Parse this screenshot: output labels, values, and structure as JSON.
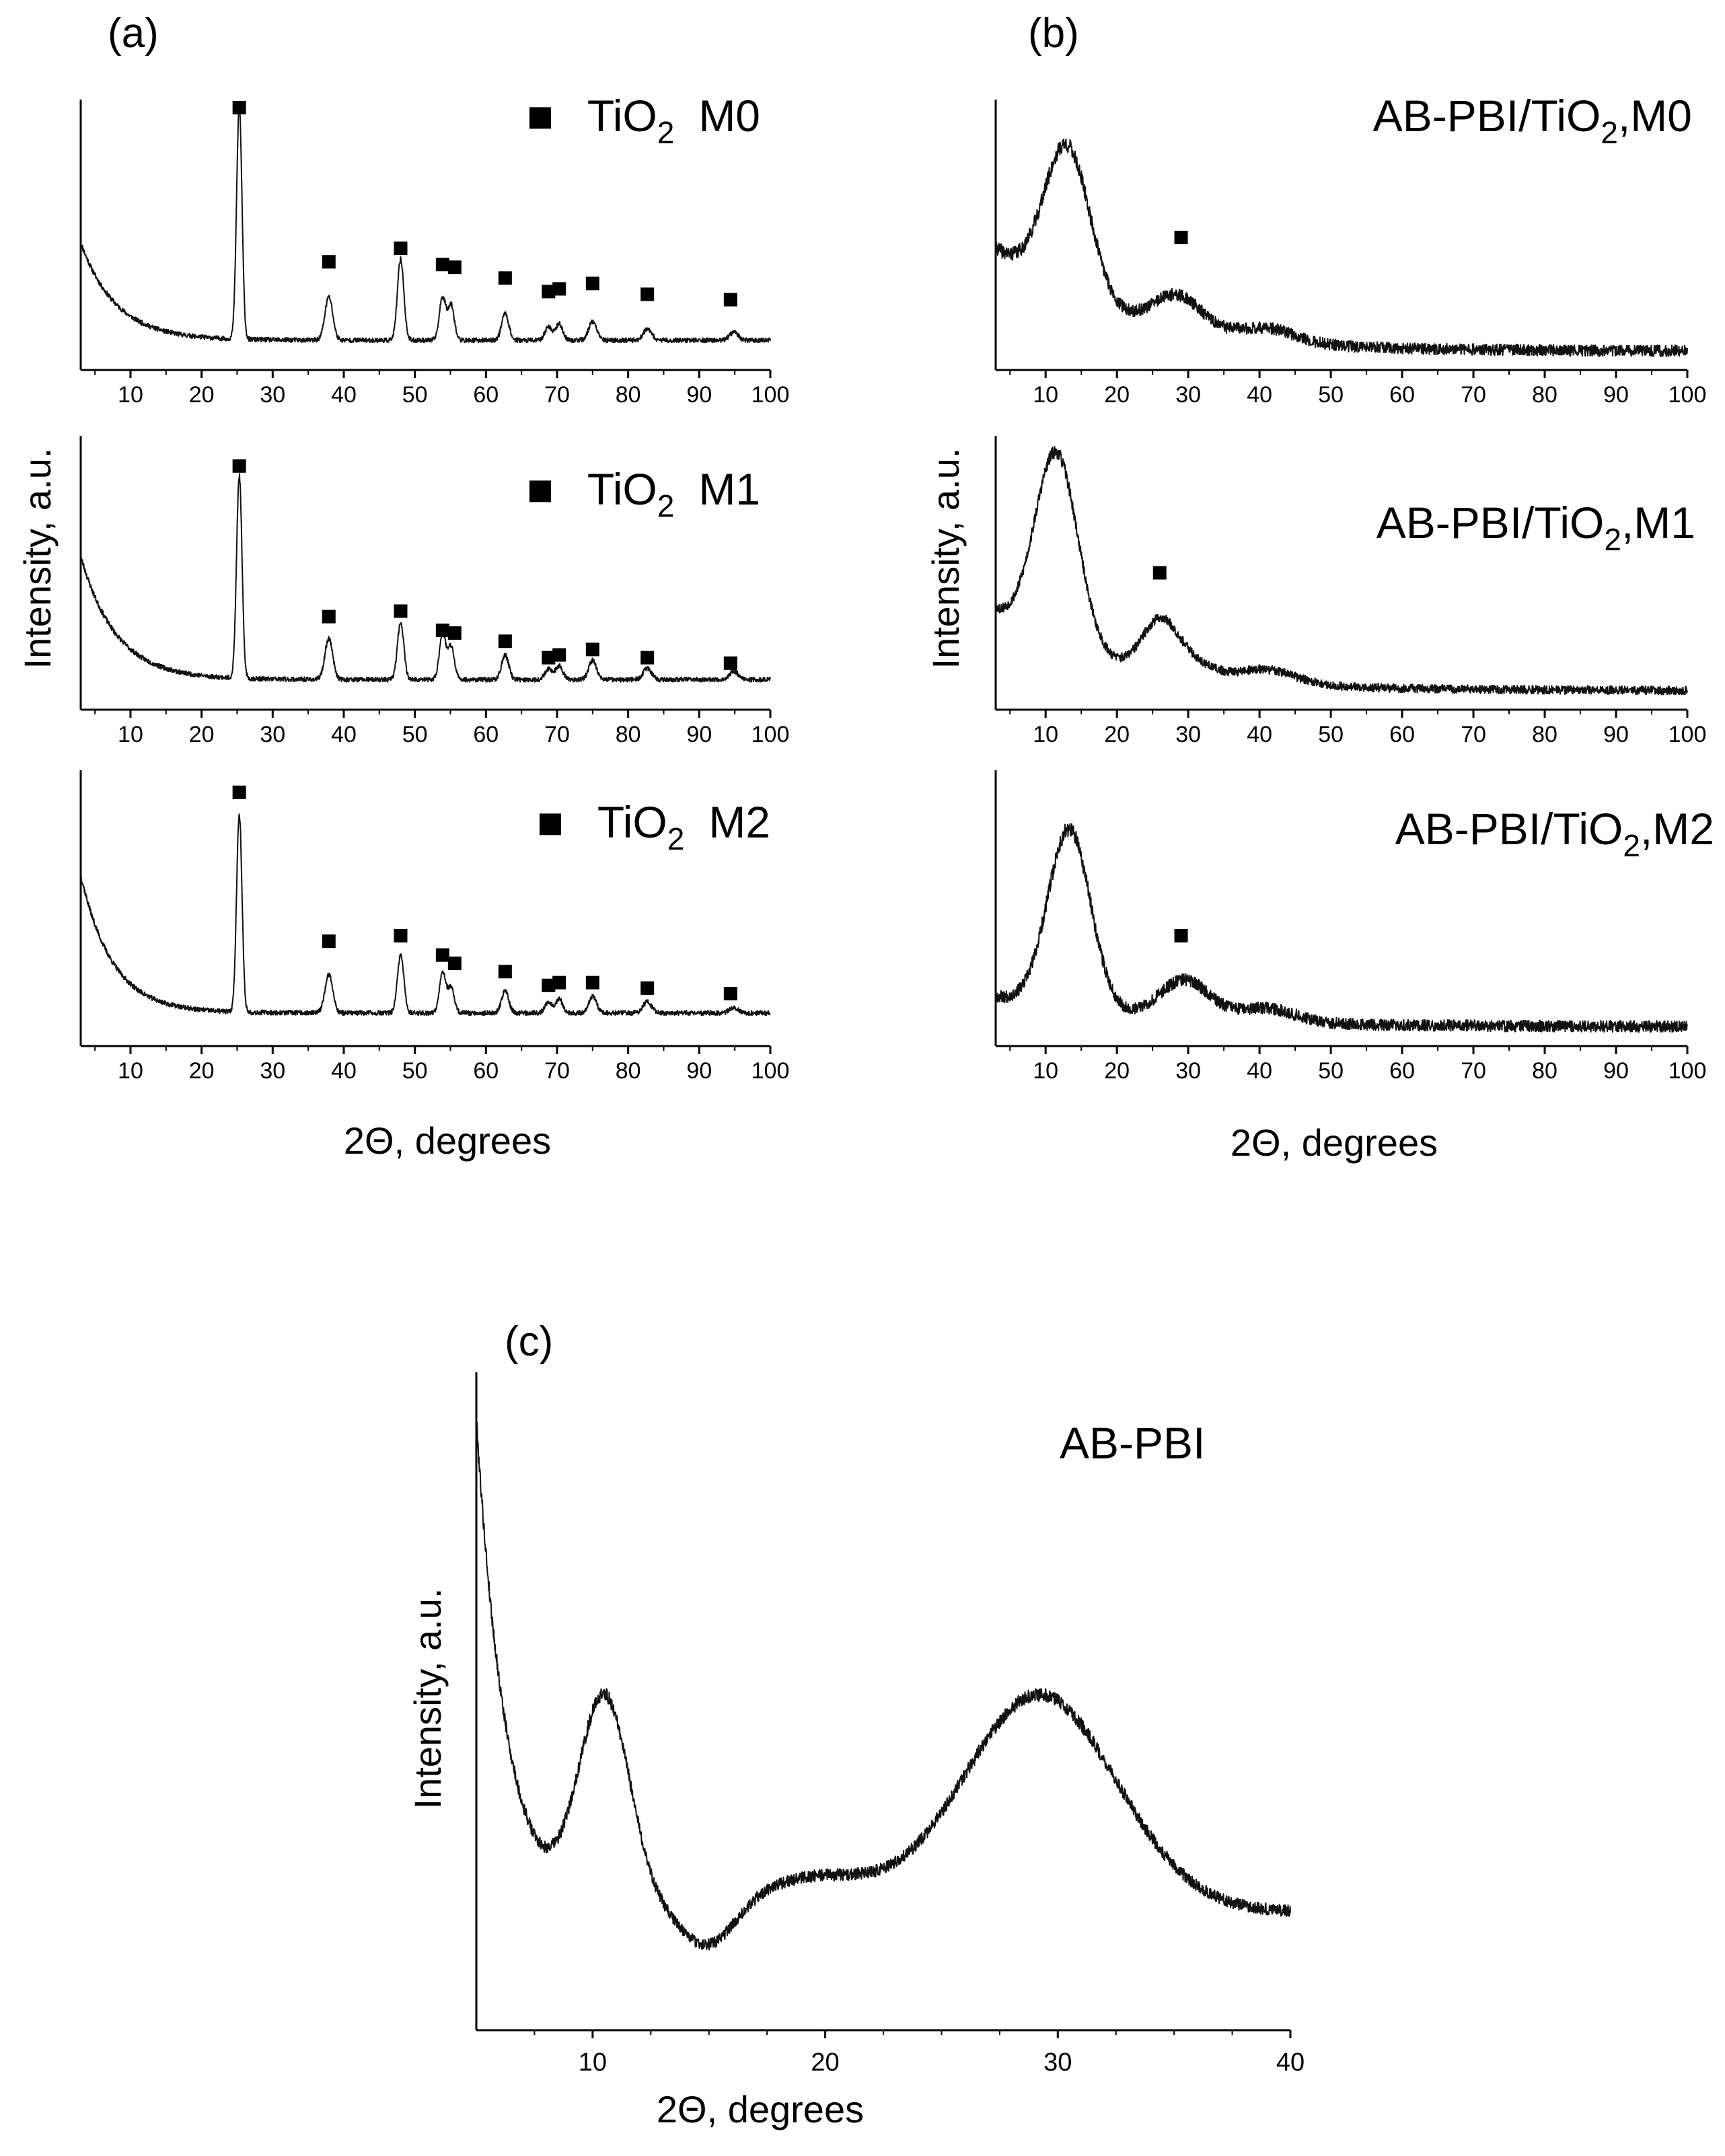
{
  "figure": {
    "panels": [
      {
        "letter": "(a)",
        "xlabel": "2Θ, degrees",
        "ylabel": "Intensity, a.u."
      },
      {
        "letter": "(b)",
        "xlabel": "2Θ, degrees",
        "ylabel": "Intensity, a.u."
      },
      {
        "letter": "(c)",
        "xlabel": "2Θ, degrees",
        "ylabel": "Intensity, a.u."
      }
    ],
    "marker_symbol": "■",
    "line_color": "#111111",
    "marker_color": "#000000"
  },
  "chart_data": [
    {
      "type": "line",
      "panel": "(a)",
      "id": "a0",
      "legend": {
        "marker": "■",
        "main": "TiO",
        "sub": "2",
        "suffix": "M0"
      },
      "xlim": [
        3,
        100
      ],
      "ylim": [
        0,
        1
      ],
      "xticks": [
        10,
        20,
        30,
        40,
        50,
        60,
        70,
        80,
        90,
        100
      ],
      "baseline": {
        "start": 0.47,
        "decay": 5.0,
        "floor": 0.11
      },
      "peaks": [
        [
          25.3,
          0.86,
          0.38
        ],
        [
          37.9,
          0.16,
          0.55
        ],
        [
          48.0,
          0.3,
          0.45
        ],
        [
          53.9,
          0.16,
          0.45
        ],
        [
          55.1,
          0.13,
          0.45
        ],
        [
          62.7,
          0.1,
          0.5
        ],
        [
          68.8,
          0.05,
          0.5
        ],
        [
          70.3,
          0.06,
          0.5
        ],
        [
          75.0,
          0.07,
          0.55
        ],
        [
          82.7,
          0.04,
          0.6
        ],
        [
          94.9,
          0.03,
          0.6
        ]
      ],
      "markers": [
        [
          25.3,
          0.97
        ],
        [
          37.9,
          0.4
        ],
        [
          48.0,
          0.45
        ],
        [
          53.9,
          0.39
        ],
        [
          55.6,
          0.38
        ],
        [
          62.7,
          0.34
        ],
        [
          68.8,
          0.29
        ],
        [
          70.3,
          0.3
        ],
        [
          75.0,
          0.32
        ],
        [
          82.7,
          0.28
        ],
        [
          94.4,
          0.26
        ]
      ],
      "noise": 0.008,
      "seed": 11
    },
    {
      "type": "line",
      "panel": "(a)",
      "id": "a1",
      "legend": {
        "marker": "■",
        "main": "TiO",
        "sub": "2",
        "suffix": "M1"
      },
      "xlim": [
        3,
        100
      ],
      "ylim": [
        0,
        1
      ],
      "xticks": [
        10,
        20,
        30,
        40,
        50,
        60,
        70,
        80,
        90,
        100
      ],
      "baseline": {
        "start": 0.56,
        "decay": 5.0,
        "floor": 0.11
      },
      "peaks": [
        [
          25.3,
          0.74,
          0.38
        ],
        [
          37.9,
          0.15,
          0.55
        ],
        [
          48.0,
          0.21,
          0.45
        ],
        [
          53.9,
          0.17,
          0.45
        ],
        [
          55.1,
          0.12,
          0.45
        ],
        [
          62.7,
          0.09,
          0.5
        ],
        [
          68.8,
          0.04,
          0.5
        ],
        [
          70.3,
          0.05,
          0.5
        ],
        [
          75.0,
          0.07,
          0.55
        ],
        [
          82.7,
          0.04,
          0.6
        ],
        [
          94.9,
          0.03,
          0.6
        ]
      ],
      "markers": [
        [
          25.3,
          0.89
        ],
        [
          37.9,
          0.34
        ],
        [
          48.0,
          0.36
        ],
        [
          53.9,
          0.29
        ],
        [
          55.6,
          0.28
        ],
        [
          62.7,
          0.25
        ],
        [
          68.8,
          0.19
        ],
        [
          70.3,
          0.2
        ],
        [
          75.0,
          0.22
        ],
        [
          82.7,
          0.19
        ],
        [
          94.4,
          0.17
        ]
      ],
      "noise": 0.008,
      "seed": 23
    },
    {
      "type": "line",
      "panel": "(a)",
      "id": "a2",
      "legend": {
        "marker": "■",
        "main": "TiO",
        "sub": "2",
        "suffix": "M2"
      },
      "xlim": [
        3,
        100
      ],
      "ylim": [
        0,
        1
      ],
      "xticks": [
        10,
        20,
        30,
        40,
        50,
        60,
        70,
        80,
        90,
        100
      ],
      "baseline": {
        "start": 0.62,
        "decay": 4.5,
        "floor": 0.12
      },
      "peaks": [
        [
          25.3,
          0.72,
          0.38
        ],
        [
          37.9,
          0.14,
          0.55
        ],
        [
          48.0,
          0.21,
          0.45
        ],
        [
          53.9,
          0.15,
          0.45
        ],
        [
          55.1,
          0.09,
          0.45
        ],
        [
          62.7,
          0.08,
          0.5
        ],
        [
          68.8,
          0.04,
          0.5
        ],
        [
          70.3,
          0.05,
          0.5
        ],
        [
          75.0,
          0.06,
          0.55
        ],
        [
          82.7,
          0.04,
          0.6
        ],
        [
          94.9,
          0.02,
          0.6
        ]
      ],
      "markers": [
        [
          25.3,
          0.92
        ],
        [
          37.9,
          0.38
        ],
        [
          48.0,
          0.4
        ],
        [
          53.9,
          0.33
        ],
        [
          55.6,
          0.3
        ],
        [
          62.7,
          0.27
        ],
        [
          68.8,
          0.22
        ],
        [
          70.3,
          0.23
        ],
        [
          75.0,
          0.23
        ],
        [
          82.7,
          0.21
        ],
        [
          94.4,
          0.19
        ]
      ],
      "noise": 0.008,
      "seed": 37
    },
    {
      "type": "line",
      "panel": "(b)",
      "id": "b0",
      "legend": {
        "marker": "",
        "main": "AB-PBI/TiO",
        "sub": "2",
        "suffix": ",M0"
      },
      "xlim": [
        3,
        100
      ],
      "ylim": [
        0,
        1
      ],
      "xticks": [
        10,
        20,
        30,
        40,
        50,
        60,
        70,
        80,
        90,
        100
      ],
      "baseline": {
        "start": 0.45,
        "decay": 16.0,
        "floor": 0.07
      },
      "peaks": [
        [
          13.0,
          0.56,
          3.2
        ],
        [
          28.5,
          0.13,
          3.5
        ],
        [
          41.0,
          0.05,
          4.0
        ]
      ],
      "markers": [
        [
          29.0,
          0.49
        ]
      ],
      "noise": 0.02,
      "seed": 41
    },
    {
      "type": "line",
      "panel": "(b)",
      "id": "b1",
      "legend": {
        "marker": "",
        "main": "AB-PBI/TiO",
        "sub": "2",
        "suffix": ",M1"
      },
      "xlim": [
        3,
        100
      ],
      "ylim": [
        0,
        1
      ],
      "xticks": [
        10,
        20,
        30,
        40,
        50,
        60,
        70,
        80,
        90,
        100
      ],
      "baseline": {
        "start": 0.36,
        "decay": 16.0,
        "floor": 0.07
      },
      "peaks": [
        [
          11.5,
          0.7,
          3.0
        ],
        [
          26.0,
          0.18,
          2.5
        ],
        [
          30.5,
          0.05,
          3.0
        ],
        [
          41.0,
          0.05,
          4.0
        ]
      ],
      "markers": [
        [
          26.0,
          0.5
        ]
      ],
      "noise": 0.015,
      "seed": 53
    },
    {
      "type": "line",
      "panel": "(b)",
      "id": "b2",
      "legend": {
        "marker": "",
        "main": "AB-PBI/TiO",
        "sub": "2",
        "suffix": ",M2"
      },
      "xlim": [
        3,
        100
      ],
      "ylim": [
        0,
        1
      ],
      "xticks": [
        10,
        20,
        30,
        40,
        50,
        60,
        70,
        80,
        90,
        100
      ],
      "baseline": {
        "start": 0.18,
        "decay": 20.0,
        "floor": 0.07
      },
      "peaks": [
        [
          13.3,
          0.65,
          3.0
        ],
        [
          29.5,
          0.14,
          3.5
        ],
        [
          41.0,
          0.05,
          4.0
        ]
      ],
      "markers": [
        [
          29.0,
          0.4
        ]
      ],
      "noise": 0.02,
      "seed": 67
    },
    {
      "type": "line",
      "panel": "(c)",
      "id": "c",
      "legend": {
        "main": "AB-PBI"
      },
      "xlim": [
        5,
        40
      ],
      "ylim": [
        0,
        1
      ],
      "xticks": [
        10,
        20,
        30,
        40
      ],
      "minor_ticks": [
        7.5,
        12.5,
        15,
        17.5,
        22.5,
        25,
        27.5,
        32.5,
        35,
        37.5
      ],
      "baseline": {
        "start": 0.93,
        "decay": 1.3,
        "floor": 0.18
      },
      "peaks": [
        [
          10.5,
          0.32,
          1.1
        ],
        [
          19.5,
          0.05,
          2.5
        ],
        [
          29.2,
          0.33,
          3.3
        ]
      ],
      "dips": [
        [
          15.0,
          0.06,
          1.1
        ]
      ],
      "markers": [],
      "noise": 0.008,
      "seed": 79
    }
  ]
}
